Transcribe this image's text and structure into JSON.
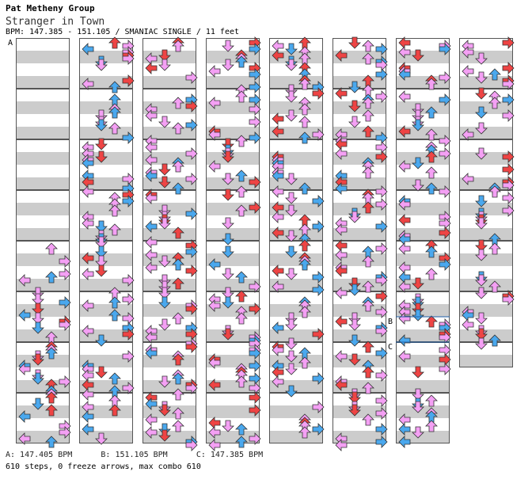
{
  "header": {
    "artist": "Pat Metheny Group",
    "title": "Stranger in Town",
    "bpm_line": "BPM: 147.385 - 151.105 / SMANIAC SINGLE / 11 feet"
  },
  "footer": {
    "bpm_changes": "A: 147.405 BPM      B: 151.105 BPM      C: 147.385 BPM",
    "stats": "610 steps, 0 freeze arrows, max combo 610"
  },
  "chart_meta": {
    "difficulty": "SMANIAC",
    "mode": "SINGLE",
    "feet": 11,
    "steps": 610,
    "freeze_arrows": 0,
    "max_combo": 610,
    "columns": 8,
    "measures_per_column": 8,
    "markers": [
      {
        "label": "A",
        "column": 1,
        "measure": 1,
        "fraction": 0.0
      },
      {
        "label": "B",
        "column": 7,
        "measure": 6,
        "fraction": 0.5
      },
      {
        "label": "C",
        "column": 7,
        "measure": 7,
        "fraction": 0.0
      }
    ],
    "note_colors": {
      "quarter": "#ee4444",
      "eighth": "#4aa8ee",
      "sixteenth": "#f4a0f4"
    }
  }
}
